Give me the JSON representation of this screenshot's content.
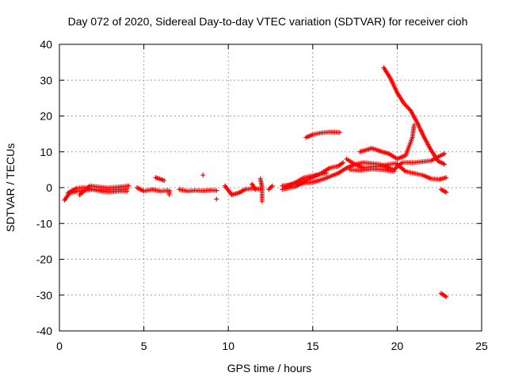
{
  "chart_data": {
    "type": "scatter",
    "title": "Day 072 of 2020, Sidereal Day-to-day VTEC variation (SDTVAR) for receiver cioh",
    "xlabel": "GPS time / hours",
    "ylabel": "SDTVAR / TECUs",
    "xlim": [
      0,
      25
    ],
    "ylim": [
      -40,
      40
    ],
    "xticks": [
      0,
      5,
      10,
      15,
      20,
      25
    ],
    "yticks": [
      -40,
      -30,
      -20,
      -10,
      0,
      10,
      20,
      30,
      40
    ],
    "grid": true,
    "marker": "+",
    "color": "#ff0000",
    "segments": [
      {
        "name": "early-1",
        "points": [
          [
            0.3,
            -3.5
          ],
          [
            0.6,
            -1.5
          ],
          [
            1.0,
            -1.0
          ],
          [
            1.5,
            -0.8
          ],
          [
            2.0,
            -0.5
          ],
          [
            2.5,
            -0.7
          ],
          [
            3.0,
            -0.6
          ],
          [
            3.5,
            -0.5
          ],
          [
            4.0,
            -0.4
          ]
        ]
      },
      {
        "name": "early-2",
        "points": [
          [
            0.5,
            -1.5
          ],
          [
            1.0,
            -0.2
          ],
          [
            1.5,
            0.0
          ],
          [
            2.0,
            -0.5
          ],
          [
            2.5,
            -1.0
          ],
          [
            3.0,
            -1.2
          ],
          [
            3.5,
            -1.0
          ],
          [
            4.0,
            -1.0
          ]
        ]
      },
      {
        "name": "early-3",
        "points": [
          [
            1.2,
            -2.0
          ],
          [
            1.8,
            0.5
          ],
          [
            2.3,
            0.2
          ],
          [
            2.8,
            -0.1
          ],
          [
            3.3,
            0.1
          ],
          [
            3.8,
            0.3
          ],
          [
            4.1,
            0.5
          ]
        ]
      },
      {
        "name": "mid-1",
        "points": [
          [
            4.6,
            0.0
          ],
          [
            5.0,
            -1.0
          ],
          [
            5.5,
            -0.5
          ],
          [
            6.0,
            -1.0
          ],
          [
            6.5,
            -0.8
          ],
          [
            6.5,
            -2.0
          ]
        ]
      },
      {
        "name": "mid-2",
        "points": [
          [
            5.7,
            2.8
          ],
          [
            6.2,
            2.0
          ]
        ]
      },
      {
        "name": "mid-3",
        "points": [
          [
            7.1,
            -0.5
          ],
          [
            7.6,
            -1.0
          ],
          [
            8.0,
            -0.8
          ],
          [
            8.5,
            -0.9
          ],
          [
            9.0,
            -0.7
          ],
          [
            9.3,
            -0.8
          ]
        ]
      },
      {
        "name": "mid-4",
        "points": [
          [
            8.5,
            3.5
          ]
        ]
      },
      {
        "name": "mid-5",
        "points": [
          [
            9.3,
            -3.2
          ]
        ]
      },
      {
        "name": "mid-6",
        "points": [
          [
            9.8,
            0.5
          ],
          [
            10.2,
            -2.0
          ],
          [
            10.6,
            -1.5
          ],
          [
            11.0,
            -0.5
          ],
          [
            11.5,
            -0.2
          ],
          [
            12.0,
            -0.5
          ]
        ]
      },
      {
        "name": "mid-7",
        "points": [
          [
            11.4,
            1.0
          ],
          [
            11.6,
            -0.5
          ]
        ]
      },
      {
        "name": "mid-8",
        "points": [
          [
            11.9,
            2.5
          ],
          [
            12.0,
            0.0
          ],
          [
            12.0,
            -3.8
          ]
        ]
      },
      {
        "name": "mid-9",
        "points": [
          [
            12.4,
            -0.5
          ],
          [
            12.6,
            0.5
          ]
        ]
      },
      {
        "name": "rise-1",
        "points": [
          [
            13.2,
            -0.5
          ],
          [
            14.0,
            0.3
          ],
          [
            14.8,
            2.5
          ],
          [
            15.5,
            4.0
          ],
          [
            16.0,
            5.5
          ],
          [
            16.5,
            6.0
          ],
          [
            16.8,
            7.0
          ]
        ]
      },
      {
        "name": "rise-2",
        "points": [
          [
            13.2,
            0.5
          ],
          [
            14.0,
            1.0
          ],
          [
            15.0,
            1.5
          ],
          [
            15.7,
            2.5
          ],
          [
            16.5,
            4.0
          ],
          [
            17.0,
            5.5
          ],
          [
            17.5,
            6.5
          ],
          [
            18.0,
            7.0
          ],
          [
            19.0,
            6.5
          ],
          [
            19.8,
            5.0
          ],
          [
            20.3,
            7.0
          ],
          [
            21.0,
            7.0
          ],
          [
            22.0,
            7.5
          ],
          [
            22.8,
            9.5
          ]
        ]
      },
      {
        "name": "rise-3",
        "points": [
          [
            13.3,
            0.0
          ],
          [
            14.0,
            1.5
          ],
          [
            14.5,
            2.8
          ],
          [
            15.2,
            3.5
          ],
          [
            15.8,
            4.0
          ]
        ]
      },
      {
        "name": "hump",
        "points": [
          [
            14.6,
            14.0
          ],
          [
            15.0,
            14.8
          ],
          [
            15.5,
            15.3
          ],
          [
            16.0,
            15.5
          ],
          [
            16.6,
            15.4
          ]
        ]
      },
      {
        "name": "block-1",
        "points": [
          [
            17.0,
            8.0
          ],
          [
            17.5,
            6.5
          ],
          [
            18.0,
            5.5
          ],
          [
            18.5,
            5.8
          ],
          [
            19.0,
            6.0
          ],
          [
            19.5,
            6.5
          ],
          [
            20.0,
            6.8
          ]
        ]
      },
      {
        "name": "block-2",
        "points": [
          [
            17.2,
            5.0
          ],
          [
            17.8,
            4.8
          ],
          [
            18.5,
            5.2
          ],
          [
            19.2,
            5.0
          ],
          [
            19.8,
            4.5
          ]
        ]
      },
      {
        "name": "block-3",
        "points": [
          [
            17.8,
            10.0
          ],
          [
            18.5,
            11.0
          ],
          [
            19.1,
            10.0
          ],
          [
            19.5,
            9.5
          ],
          [
            20.0,
            8.0
          ],
          [
            20.5,
            9.0
          ],
          [
            20.9,
            14.0
          ],
          [
            21.0,
            17.5
          ]
        ]
      },
      {
        "name": "peak-descent",
        "points": [
          [
            19.2,
            33.5
          ],
          [
            19.6,
            30.5
          ],
          [
            20.0,
            26.5
          ],
          [
            20.4,
            23.5
          ],
          [
            20.8,
            21.5
          ],
          [
            21.2,
            18.0
          ],
          [
            21.6,
            14.0
          ],
          [
            22.0,
            10.5
          ],
          [
            22.4,
            7.5
          ],
          [
            22.8,
            6.5
          ]
        ]
      },
      {
        "name": "end-slope",
        "points": [
          [
            20.0,
            6.5
          ],
          [
            20.5,
            4.5
          ],
          [
            21.0,
            4.0
          ],
          [
            21.5,
            3.5
          ],
          [
            22.0,
            2.5
          ],
          [
            22.5,
            2.3
          ],
          [
            22.9,
            2.8
          ]
        ]
      },
      {
        "name": "end-small",
        "points": [
          [
            22.6,
            -0.5
          ],
          [
            22.9,
            -1.3
          ]
        ]
      },
      {
        "name": "outlier",
        "points": [
          [
            22.6,
            -29.5
          ],
          [
            22.9,
            -30.5
          ]
        ]
      }
    ]
  }
}
